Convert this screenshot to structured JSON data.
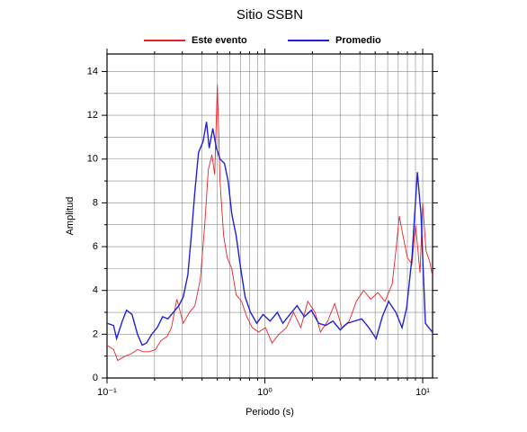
{
  "chart_data": {
    "type": "line",
    "title": "Sitio SSBN",
    "xlabel": "Periodo (s)",
    "ylabel": "Amplitud",
    "xscale": "log",
    "grid": true,
    "legend": "top",
    "xlim": [
      0.1,
      11.55
    ],
    "ylim": [
      0,
      14.8
    ],
    "xticks": [
      {
        "value": 0.1,
        "label": "10⁻¹"
      },
      {
        "value": 1,
        "label": "10⁰"
      },
      {
        "value": 10,
        "label": "10¹"
      }
    ],
    "xminorticks": [
      0.2,
      0.3,
      0.4,
      0.5,
      0.6,
      0.7,
      0.8,
      0.9,
      2,
      3,
      4,
      5,
      6,
      7,
      8,
      9
    ],
    "yticks": [
      0,
      2,
      4,
      6,
      8,
      10,
      12,
      14
    ],
    "yminorticks": [
      1,
      3,
      5,
      7,
      9,
      11,
      13
    ],
    "series": [
      {
        "name": "Este evento",
        "color": "#e8232a",
        "x": [
          0.1,
          0.11,
          0.117,
          0.13,
          0.142,
          0.156,
          0.169,
          0.185,
          0.203,
          0.219,
          0.24,
          0.256,
          0.277,
          0.304,
          0.333,
          0.36,
          0.39,
          0.416,
          0.438,
          0.462,
          0.481,
          0.5,
          0.52,
          0.548,
          0.577,
          0.617,
          0.658,
          0.711,
          0.769,
          0.832,
          0.913,
          1.01,
          1.11,
          1.23,
          1.37,
          1.52,
          1.69,
          1.87,
          2.08,
          2.25,
          2.5,
          2.77,
          3.08,
          3.42,
          3.8,
          4.22,
          4.68,
          5.2,
          5.77,
          6.41,
          6.76,
          7.11,
          7.5,
          8.0,
          8.55,
          9.01,
          9.62,
          10.0,
          10.5,
          11.1,
          11.5
        ],
        "values": [
          1.5,
          1.3,
          0.8,
          1.0,
          1.1,
          1.3,
          1.2,
          1.2,
          1.3,
          1.7,
          1.9,
          2.3,
          3.6,
          2.5,
          3.0,
          3.3,
          4.5,
          7.0,
          9.5,
          10.2,
          9.3,
          13.4,
          9.0,
          6.5,
          5.5,
          5.0,
          3.8,
          3.5,
          2.8,
          2.3,
          2.1,
          2.3,
          1.6,
          2.0,
          2.3,
          3.0,
          2.3,
          3.5,
          3.0,
          2.1,
          2.6,
          3.4,
          2.3,
          2.6,
          3.5,
          4.0,
          3.6,
          3.9,
          3.5,
          4.3,
          5.8,
          7.4,
          6.5,
          5.5,
          5.2,
          7.0,
          4.8,
          8.0,
          5.8,
          5.3,
          4.7
        ]
      },
      {
        "name": "Promedio",
        "color": "#1f22d6",
        "x": [
          0.1,
          0.11,
          0.115,
          0.125,
          0.133,
          0.144,
          0.156,
          0.167,
          0.178,
          0.192,
          0.208,
          0.225,
          0.243,
          0.263,
          0.285,
          0.304,
          0.325,
          0.342,
          0.36,
          0.38,
          0.406,
          0.427,
          0.444,
          0.468,
          0.493,
          0.52,
          0.555,
          0.585,
          0.617,
          0.658,
          0.703,
          0.75,
          0.811,
          0.889,
          0.974,
          1.08,
          1.2,
          1.3,
          1.44,
          1.6,
          1.78,
          1.97,
          2.19,
          2.43,
          2.7,
          3.0,
          3.33,
          3.7,
          4.11,
          4.56,
          5.07,
          5.55,
          6.08,
          6.76,
          7.4,
          7.91,
          8.55,
          9.25,
          9.75,
          10.4,
          11.5
        ],
        "values": [
          2.5,
          2.4,
          1.8,
          2.6,
          3.1,
          2.9,
          2.0,
          1.5,
          1.6,
          2.0,
          2.3,
          2.8,
          2.7,
          3.0,
          3.3,
          3.7,
          4.7,
          6.5,
          8.5,
          10.3,
          10.8,
          11.7,
          10.5,
          11.4,
          10.5,
          10.0,
          9.8,
          9.0,
          7.5,
          6.5,
          5.0,
          3.7,
          3.0,
          2.5,
          2.9,
          2.6,
          3.0,
          2.5,
          2.9,
          3.3,
          2.8,
          3.1,
          2.5,
          2.4,
          2.6,
          2.2,
          2.5,
          2.6,
          2.7,
          2.3,
          1.8,
          2.8,
          3.5,
          3.0,
          2.3,
          3.2,
          5.5,
          9.4,
          7.5,
          2.5,
          2.1
        ]
      }
    ]
  }
}
